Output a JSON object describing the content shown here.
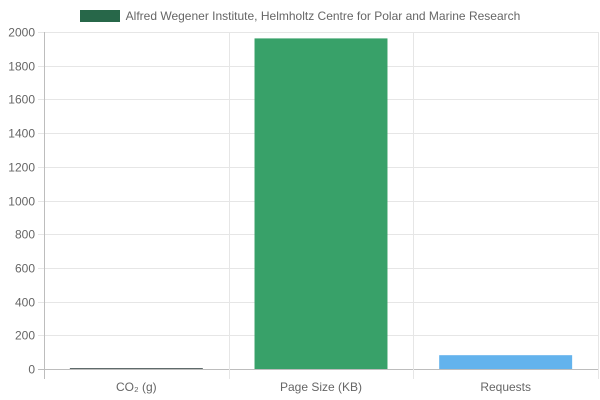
{
  "chart_data": {
    "type": "bar",
    "categories": [
      "CO₂ (g)",
      "Page Size (KB)",
      "Requests"
    ],
    "series": [
      {
        "name": "Alfred Wegener Institute, Helmholtz Centre for Polar and Marine Research",
        "values": [
          2.1,
          1962,
          82
        ],
        "colors": [
          "#5f6b6b",
          "#38a169",
          "#63b3ed"
        ]
      }
    ],
    "ylim": [
      0,
      2000
    ],
    "yticks": [
      0,
      200,
      400,
      600,
      800,
      1000,
      1200,
      1400,
      1600,
      1800,
      2000
    ],
    "grid": true,
    "legend_position": "top",
    "legend_color": "#276749"
  }
}
